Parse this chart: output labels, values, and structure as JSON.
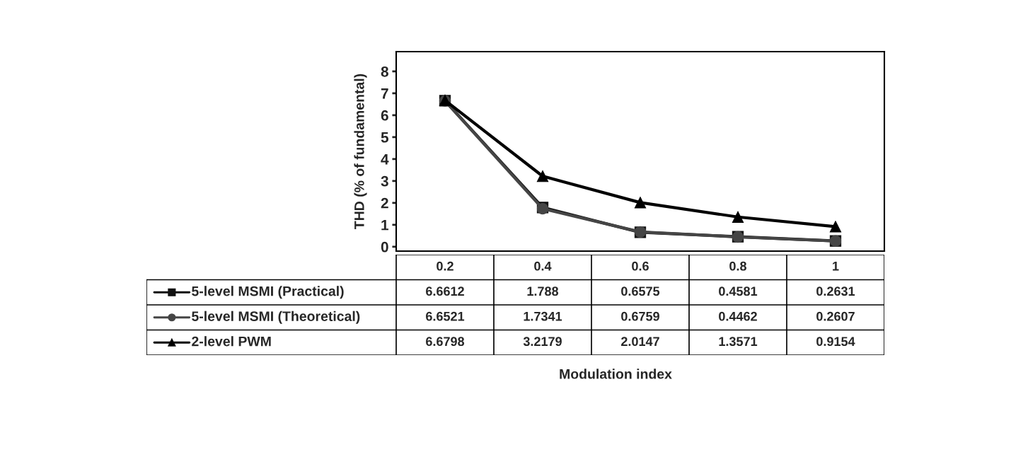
{
  "chart_data": {
    "type": "line",
    "annotations": [
      "Modulation index"
    ],
    "ylabel": "THD (% of fundamental)",
    "categories": [
      "0.2",
      "0.4",
      "0.6",
      "0.8",
      "1"
    ],
    "series": [
      {
        "name": "5-level MSMI (Practical)",
        "color": "#111111",
        "marker": "square",
        "values": [
          6.6612,
          1.788,
          0.6575,
          0.4581,
          0.2631
        ]
      },
      {
        "name": "5-level MSMI (Theoretical)",
        "color": "#454545",
        "marker": "circle",
        "values": [
          6.6521,
          1.7341,
          0.6759,
          0.4462,
          0.2607
        ]
      },
      {
        "name": "2-level PWM",
        "color": "#000000",
        "marker": "triangle",
        "values": [
          6.6798,
          3.2179,
          2.0147,
          1.3571,
          0.9154
        ]
      }
    ],
    "ylim": [
      -0.2,
      8.9
    ],
    "yticks": [
      0,
      1,
      2,
      3,
      4,
      5,
      6,
      7,
      8
    ],
    "grid": false,
    "legend": "bottom left",
    "data_labels": true,
    "line_style": "solid"
  }
}
